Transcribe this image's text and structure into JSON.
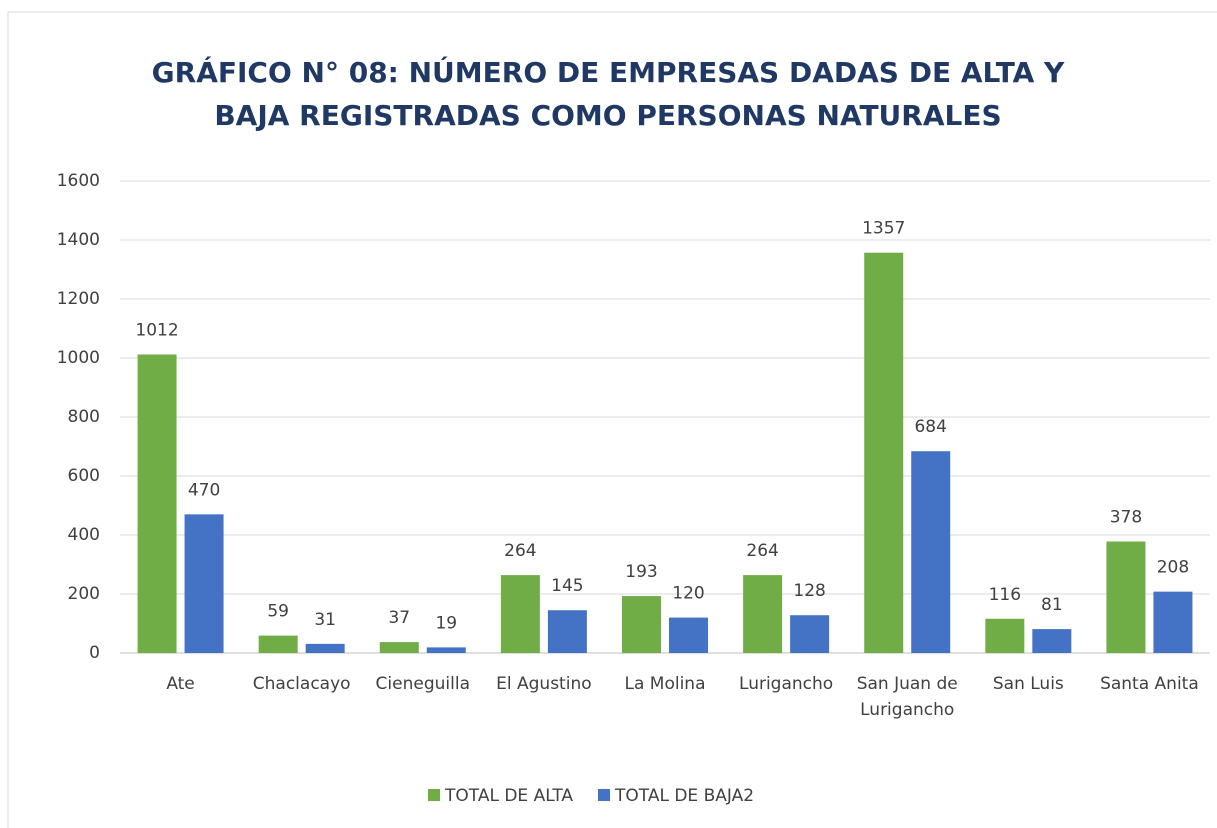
{
  "chart_data": {
    "type": "bar",
    "title": [
      "GRÁFICO N° 08: NÚMERO DE EMPRESAS DADAS DE ALTA Y",
      "BAJA REGISTRADAS COMO PERSONAS NATURALES"
    ],
    "categories": [
      "Ate",
      "Chaclacayo",
      "Cieneguilla",
      "El Agustino",
      "La Molina",
      "Lurigancho",
      "San Juan de Lurigancho",
      "San Luis",
      "Santa Anita"
    ],
    "series": [
      {
        "name": "TOTAL DE ALTA",
        "color": "#70ad47",
        "values": [
          1012,
          59,
          37,
          264,
          193,
          264,
          1357,
          116,
          378
        ]
      },
      {
        "name": "TOTAL DE BAJA2",
        "color": "#4472c4",
        "values": [
          470,
          31,
          19,
          145,
          120,
          128,
          684,
          81,
          208
        ]
      }
    ],
    "ylim": [
      0,
      1600
    ],
    "yticks": [
      0,
      200,
      400,
      600,
      800,
      1000,
      1200,
      1400,
      1600
    ],
    "grid": true,
    "legend": "bottom"
  }
}
